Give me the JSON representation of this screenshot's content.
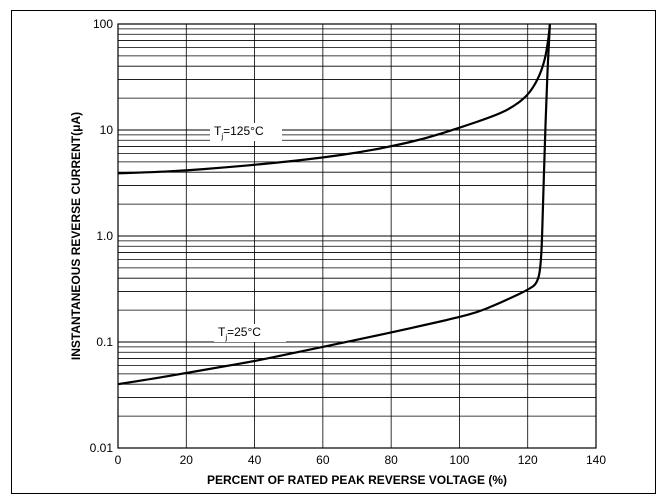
{
  "chart_data": {
    "type": "line",
    "title": "",
    "xlabel": "PERCENT OF RATED PEAK REVERSE VOLTAGE (%)",
    "ylabel": "INSTANTANEOUS REVERSE CURRENT(μA)",
    "xlim": [
      0,
      140
    ],
    "ylim": [
      0.01,
      100
    ],
    "yscale": "log",
    "grid": true,
    "x_ticks": [
      0,
      20,
      40,
      60,
      80,
      100,
      120,
      140
    ],
    "x_tick_labels": [
      "0",
      "20",
      "40",
      "60",
      "80",
      "100",
      "120",
      "140"
    ],
    "y_ticks": [
      0.01,
      0.1,
      1,
      10,
      100
    ],
    "y_tick_labels": [
      "0.01",
      "0.1",
      "1.0",
      "10",
      "100"
    ],
    "series": [
      {
        "label_main": "T",
        "label_sub": "j",
        "label_rest": "=125°C",
        "x": [
          0,
          10,
          20,
          30,
          40,
          50,
          60,
          70,
          80,
          90,
          100,
          110,
          115,
          120,
          123,
          125,
          126,
          126.5
        ],
        "y": [
          3.9,
          4.0,
          4.15,
          4.4,
          4.7,
          5.05,
          5.5,
          6.1,
          7.0,
          8.3,
          10.5,
          13.5,
          16.0,
          21.0,
          30.0,
          45.0,
          70.0,
          100.0
        ]
      },
      {
        "label_main": "T",
        "label_sub": "j",
        "label_rest": "=25°C",
        "x": [
          0,
          10,
          20,
          30,
          40,
          50,
          60,
          70,
          80,
          90,
          100,
          105,
          110,
          115,
          120,
          123,
          124,
          124.5,
          125,
          125.5,
          126,
          126.5
        ],
        "y": [
          0.04,
          0.045,
          0.051,
          0.058,
          0.066,
          0.077,
          0.09,
          0.105,
          0.123,
          0.145,
          0.172,
          0.19,
          0.22,
          0.26,
          0.31,
          0.36,
          0.6,
          2.0,
          7.0,
          20.0,
          50.0,
          100.0
        ]
      }
    ]
  }
}
